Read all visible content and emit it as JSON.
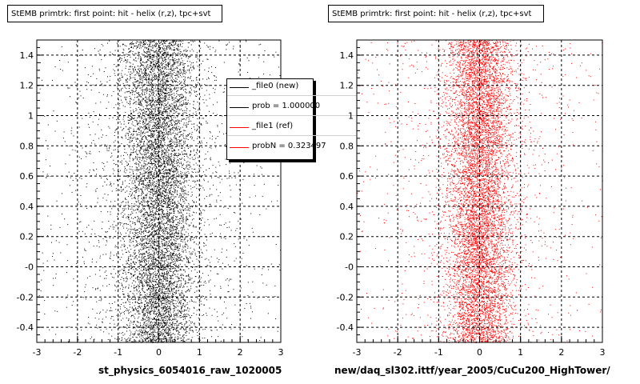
{
  "chart_data": [
    {
      "type": "scatter",
      "title": "StEMB primtrk: first point: hit - helix (r,z), tpc+svt",
      "xlabel": "st_physics_6054016_raw_1020005",
      "ylabel": "",
      "xlim": [
        -3,
        3
      ],
      "ylim": [
        -0.5,
        1.5
      ],
      "x_ticks": [
        "-3",
        "-2",
        "-1",
        "0",
        "1",
        "2",
        "3"
      ],
      "y_ticks": [
        "-0.4",
        "-0.2",
        "-0",
        "0.2",
        "0.4",
        "0.6",
        "0.8",
        "1",
        "1.2",
        "1.4"
      ],
      "grid": true,
      "marker_color": "#000000",
      "distribution": {
        "x_center": 0,
        "x_width": 0.45,
        "y_range": [
          -0.5,
          1.5
        ]
      },
      "legend": {
        "placement": "top-right",
        "entries": [
          {
            "label": "_file0 (new)",
            "color": "#000000"
          },
          {
            "label": "prob = 1.000000",
            "color": "#000000"
          },
          {
            "label": "_file1 (ref)",
            "color": "#ff0000"
          },
          {
            "label": "probN = 0.323497",
            "color": "#ff0000"
          }
        ]
      }
    },
    {
      "type": "scatter",
      "title": "StEMB primtrk: first point: hit - helix (r,z), tpc+svt",
      "xlabel": "new/daq_sl302.ittf/year_2005/CuCu200_HighTower/",
      "ylabel": "",
      "xlim": [
        -3,
        3
      ],
      "ylim": [
        -0.5,
        1.5
      ],
      "x_ticks": [
        "-3",
        "-2",
        "-1",
        "0",
        "1",
        "2",
        "3"
      ],
      "y_ticks": [
        "-0.4",
        "-0.2",
        "-0",
        "0.2",
        "0.4",
        "0.6",
        "0.8",
        "1",
        "1.2",
        "1.4"
      ],
      "grid": true,
      "marker_color": "#ff0000",
      "distribution": {
        "x_center": 0,
        "x_width": 0.38,
        "y_range": [
          -0.5,
          1.5
        ]
      }
    }
  ]
}
